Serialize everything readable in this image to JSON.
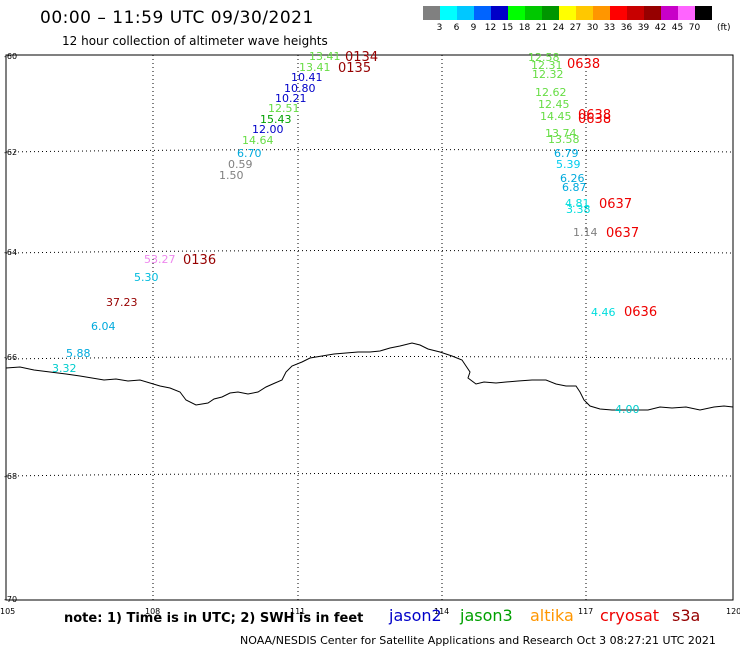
{
  "header": {
    "title": "00:00 – 11:59 UTC 09/30/2021",
    "subtitle": "12 hour collection of altimeter wave heights"
  },
  "legend": {
    "unit_label": "(ft)",
    "swatches": [
      {
        "label": "",
        "color": "#808080"
      },
      {
        "label": "3",
        "color": "#00ffff"
      },
      {
        "label": "6",
        "color": "#00c8ff"
      },
      {
        "label": "9",
        "color": "#0064ff"
      },
      {
        "label": "12",
        "color": "#0000c8"
      },
      {
        "label": "15",
        "color": "#00ff00"
      },
      {
        "label": "18",
        "color": "#00c800"
      },
      {
        "label": "21",
        "color": "#009600"
      },
      {
        "label": "24",
        "color": "#ffff00"
      },
      {
        "label": "27",
        "color": "#ffc800"
      },
      {
        "label": "30",
        "color": "#ff9600"
      },
      {
        "label": "33",
        "color": "#ff0000"
      },
      {
        "label": "36",
        "color": "#c80000"
      },
      {
        "label": "39",
        "color": "#960000"
      },
      {
        "label": "42",
        "color": "#c800c8"
      },
      {
        "label": "45",
        "color": "#ff64ff"
      },
      {
        "label": "70",
        "color": "#000000"
      }
    ]
  },
  "axes": {
    "lat_labels": [
      "-60",
      "-62",
      "-64",
      "-66",
      "-68",
      "-70"
    ],
    "lon_labels": [
      "105",
      "108",
      "111",
      "114",
      "117",
      "120"
    ]
  },
  "wave_labels": [
    {
      "text": "13.41",
      "color": "#66dd44"
    },
    {
      "text": "13.41",
      "color": "#66dd44"
    },
    {
      "text": "10.41",
      "color": "#0000c8"
    },
    {
      "text": "10.80",
      "color": "#0000c8"
    },
    {
      "text": "10.21",
      "color": "#0000c8"
    },
    {
      "text": "12.51",
      "color": "#66dd44"
    },
    {
      "text": "15.43",
      "color": "#00a000"
    },
    {
      "text": "12.00",
      "color": "#0000c8"
    },
    {
      "text": "14.64",
      "color": "#66dd44"
    },
    {
      "text": "6.70",
      "color": "#00aadd"
    },
    {
      "text": "0.59",
      "color": "#808080"
    },
    {
      "text": "1.50",
      "color": "#808080"
    },
    {
      "text": "53.27",
      "color": "#ee88ee"
    },
    {
      "text": "5.30",
      "color": "#00bbdd"
    },
    {
      "text": "37.23",
      "color": "#960000"
    },
    {
      "text": "6.04",
      "color": "#00aadd"
    },
    {
      "text": "5.88",
      "color": "#00aadd"
    },
    {
      "text": "3.32",
      "color": "#00cccc"
    },
    {
      "text": "12.58",
      "color": "#66dd44"
    },
    {
      "text": "12.31",
      "color": "#66dd44"
    },
    {
      "text": "12.32",
      "color": "#66dd44"
    },
    {
      "text": "12.62",
      "color": "#66dd44"
    },
    {
      "text": "12.45",
      "color": "#66dd44"
    },
    {
      "text": "14.45",
      "color": "#66dd44"
    },
    {
      "text": "13.74",
      "color": "#66dd44"
    },
    {
      "text": "13.58",
      "color": "#66dd44"
    },
    {
      "text": "6.79",
      "color": "#00aadd"
    },
    {
      "text": "5.39",
      "color": "#00ccee"
    },
    {
      "text": "6.26",
      "color": "#00aadd"
    },
    {
      "text": "6.87",
      "color": "#00aadd"
    },
    {
      "text": "4.81",
      "color": "#00dddd"
    },
    {
      "text": "3.38",
      "color": "#00dddd"
    },
    {
      "text": "1.14",
      "color": "#808080"
    },
    {
      "text": "4.46",
      "color": "#00dddd"
    },
    {
      "text": "4.00",
      "color": "#00cccc"
    }
  ],
  "time_labels": [
    {
      "text": "0134",
      "color": "#960000"
    },
    {
      "text": "0135",
      "color": "#960000"
    },
    {
      "text": "0136",
      "color": "#960000"
    },
    {
      "text": "0638",
      "color": "#ee0000"
    },
    {
      "text": "0638",
      "color": "#ee0000"
    },
    {
      "text": "0638",
      "color": "#ee0000"
    },
    {
      "text": "0637",
      "color": "#ee0000"
    },
    {
      "text": "0637",
      "color": "#ee0000"
    },
    {
      "text": "0636",
      "color": "#ee0000"
    }
  ],
  "footer": {
    "note": "note:  1) Time is in UTC;  2) SWH is in feet",
    "satellites": [
      {
        "name": "jason2",
        "color": "#0000c8"
      },
      {
        "name": "jason3",
        "color": "#00a000"
      },
      {
        "name": "altika",
        "color": "#ff9600"
      },
      {
        "name": "cryosat",
        "color": "#ee0000"
      },
      {
        "name": "s3a",
        "color": "#960000"
      }
    ],
    "credit": "NOAA/NESDIS Center for Satellite Applications and Research    Oct  3 08:27:21 UTC 2021"
  }
}
